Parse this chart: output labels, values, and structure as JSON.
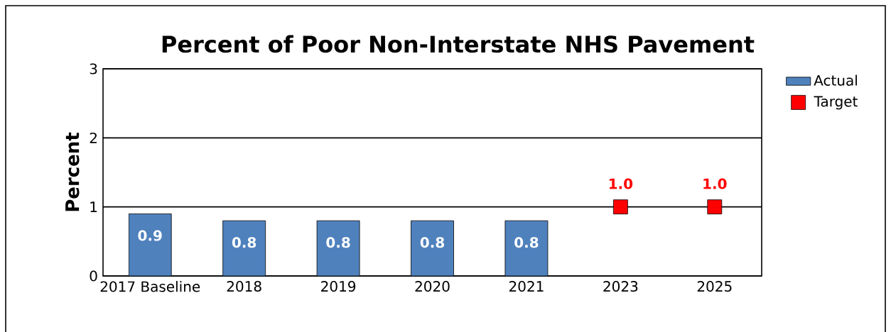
{
  "chart_data": {
    "type": "bar",
    "title": "Percent of Poor Non-Interstate NHS Pavement",
    "ylabel": "Percent",
    "categories": [
      "2017 Baseline",
      "2018",
      "2019",
      "2020",
      "2021",
      "2023",
      "2025"
    ],
    "series": [
      {
        "name": "Actual",
        "color": "#4f81bd",
        "values": [
          0.9,
          0.8,
          0.8,
          0.8,
          0.8,
          null,
          null
        ],
        "value_labels": [
          "0.9",
          "0.8",
          "0.8",
          "0.8",
          "0.8",
          null,
          null
        ]
      },
      {
        "name": "Target",
        "type": "scatter",
        "marker": "square",
        "color": "#ff0000",
        "values": [
          null,
          null,
          null,
          null,
          null,
          1.0,
          1.0
        ],
        "value_labels": [
          null,
          null,
          null,
          null,
          null,
          "1.0",
          "1.0"
        ]
      }
    ],
    "ylim": [
      0,
      3
    ],
    "yticks": [
      0,
      1,
      2,
      3
    ],
    "grid": "y",
    "legend": "top right"
  }
}
